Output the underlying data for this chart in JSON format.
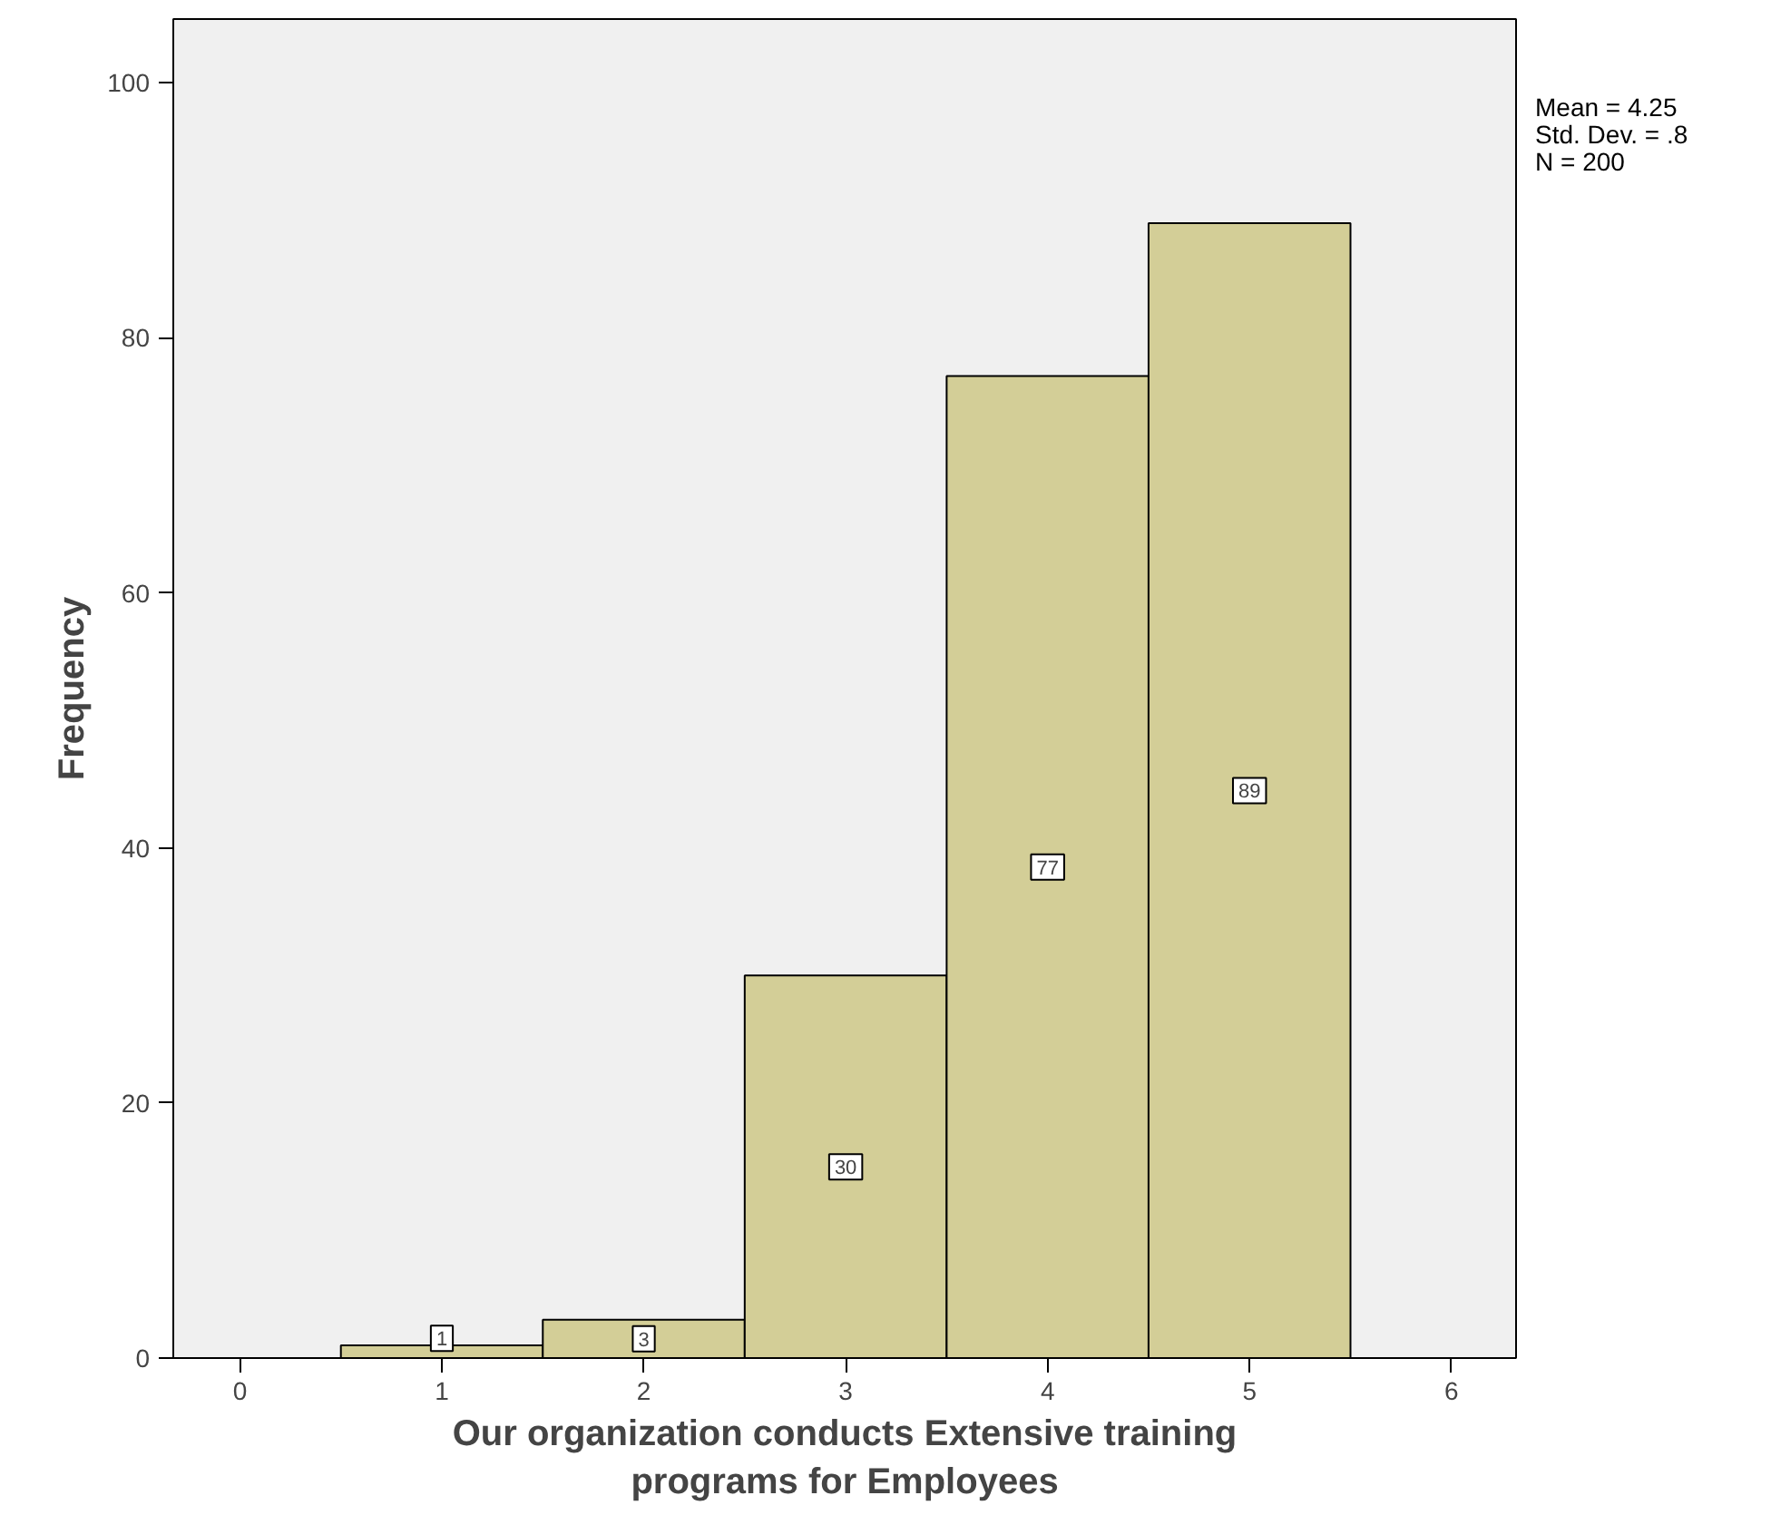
{
  "chart_data": {
    "type": "histogram",
    "xlabel": "Our organization conducts Extensive training\nprograms for Employees",
    "ylabel": "Frequency",
    "bins": [
      0.5,
      1.5,
      2.5,
      3.5,
      4.5,
      5.5
    ],
    "values": [
      1,
      3,
      30,
      77,
      89
    ],
    "color": "#d3ce97",
    "data_labels": true,
    "xlim": [
      -0.33,
      6.32
    ],
    "ylim": [
      0,
      105
    ],
    "xticks": [
      0,
      1,
      2,
      3,
      4,
      5,
      6
    ],
    "yticks": [
      0,
      20,
      40,
      60,
      80,
      100
    ],
    "grid": false,
    "annotations": [
      "Mean = 4.25",
      "Std. Dev. = .8",
      "N = 200"
    ]
  }
}
